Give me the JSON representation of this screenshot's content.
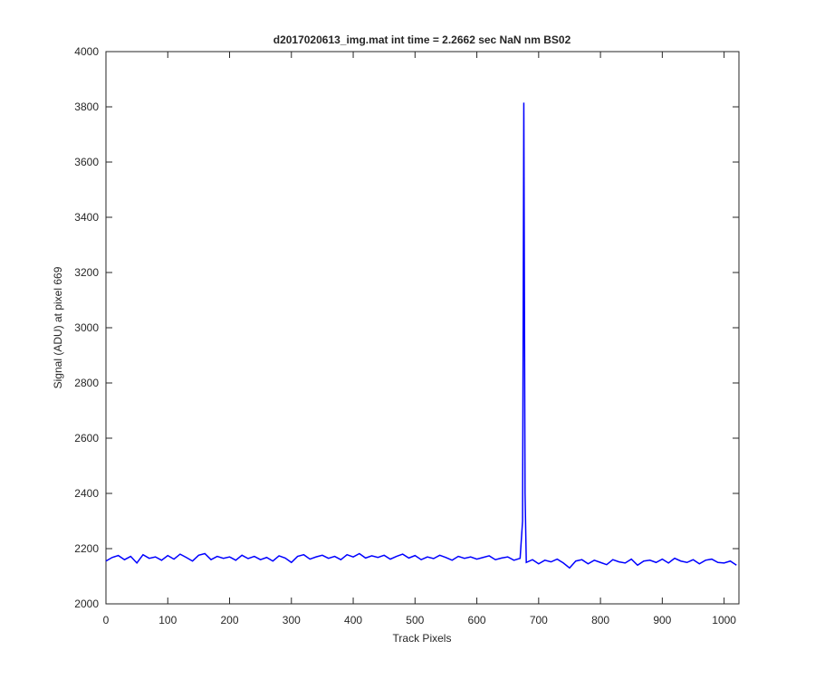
{
  "chart_data": {
    "type": "line",
    "title": "d2017020613_img.mat int time = 2.2662 sec  NaN nm BS02",
    "x_label": "Track Pixels",
    "y_label": "Signal (ADU) at pixel 669",
    "xlim": [
      0,
      1024
    ],
    "ylim": [
      2000,
      4000
    ],
    "xticks": [
      0,
      100,
      200,
      300,
      400,
      500,
      600,
      700,
      800,
      900,
      1000
    ],
    "yticks": [
      2000,
      2200,
      2400,
      2600,
      2800,
      3000,
      3200,
      3400,
      3600,
      3800,
      4000
    ],
    "x": [
      0,
      10,
      20,
      30,
      40,
      50,
      60,
      70,
      80,
      90,
      100,
      110,
      120,
      130,
      140,
      150,
      160,
      170,
      180,
      190,
      200,
      210,
      220,
      230,
      240,
      250,
      260,
      270,
      280,
      290,
      300,
      310,
      320,
      330,
      340,
      350,
      360,
      370,
      380,
      390,
      400,
      410,
      420,
      430,
      440,
      450,
      460,
      470,
      480,
      490,
      500,
      510,
      520,
      530,
      540,
      550,
      560,
      570,
      580,
      590,
      600,
      610,
      620,
      630,
      640,
      650,
      660,
      670,
      674,
      676,
      678,
      680,
      690,
      700,
      710,
      720,
      730,
      740,
      750,
      760,
      770,
      780,
      790,
      800,
      810,
      820,
      830,
      840,
      850,
      860,
      870,
      880,
      890,
      900,
      910,
      920,
      930,
      940,
      950,
      960,
      970,
      980,
      990,
      1000,
      1010,
      1020
    ],
    "series": [
      {
        "color": "#0000ff",
        "values": [
          2155,
          2168,
          2175,
          2160,
          2172,
          2148,
          2178,
          2165,
          2170,
          2158,
          2175,
          2162,
          2180,
          2168,
          2155,
          2176,
          2182,
          2160,
          2172,
          2165,
          2170,
          2158,
          2176,
          2164,
          2172,
          2160,
          2168,
          2155,
          2174,
          2166,
          2150,
          2172,
          2178,
          2162,
          2170,
          2176,
          2165,
          2172,
          2160,
          2178,
          2170,
          2182,
          2166,
          2174,
          2168,
          2176,
          2162,
          2172,
          2180,
          2166,
          2175,
          2160,
          2170,
          2164,
          2176,
          2168,
          2158,
          2172,
          2165,
          2170,
          2162,
          2168,
          2174,
          2160,
          2166,
          2170,
          2158,
          2165,
          2300,
          3815,
          2400,
          2150,
          2160,
          2145,
          2158,
          2152,
          2162,
          2148,
          2130,
          2155,
          2160,
          2145,
          2158,
          2150,
          2142,
          2160,
          2152,
          2148,
          2162,
          2140,
          2155,
          2158,
          2150,
          2162,
          2148,
          2165,
          2155,
          2150,
          2160,
          2145,
          2158,
          2162,
          2150,
          2148,
          2155,
          2140
        ]
      }
    ]
  }
}
